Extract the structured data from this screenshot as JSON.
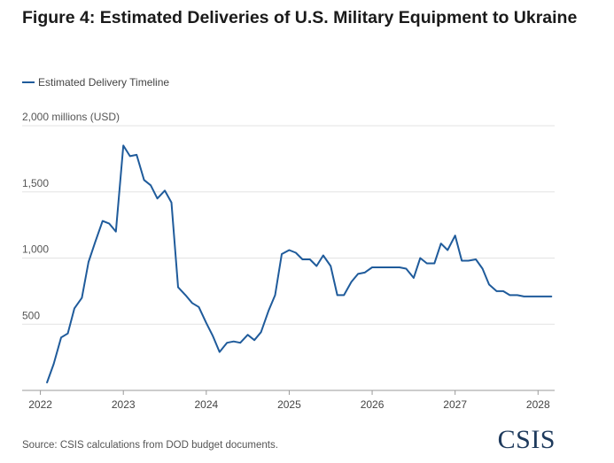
{
  "title": "Figure 4: Estimated Deliveries of U.S. Military Equipment to Ukraine",
  "source": "Source: CSIS calculations from DOD budget documents.",
  "logo_text": "CSIS",
  "colors": {
    "series": "#1f5b9b",
    "grid": "#e3e3e3",
    "axis": "#999999"
  },
  "chart_data": {
    "type": "line",
    "title": "Figure 4: Estimated Deliveries of U.S. Military Equipment to Ukraine",
    "ylabel": "millions (USD)",
    "y_top_label": "2,000 millions (USD)",
    "ylim": [
      0,
      2000
    ],
    "xlim": [
      2021.78,
      2028.2
    ],
    "grid": true,
    "legend_position": "top-left",
    "y_ticks": [
      {
        "value": 500,
        "label": "500"
      },
      {
        "value": 1000,
        "label": "1,000"
      },
      {
        "value": 1500,
        "label": "1,500"
      },
      {
        "value": 2000,
        "label": "2,000 millions (USD)"
      }
    ],
    "x_ticks": [
      {
        "value": 2022,
        "label": "2022"
      },
      {
        "value": 2023,
        "label": "2023"
      },
      {
        "value": 2024,
        "label": "2024"
      },
      {
        "value": 2025,
        "label": "2025"
      },
      {
        "value": 2026,
        "label": "2026"
      },
      {
        "value": 2027,
        "label": "2027"
      },
      {
        "value": 2028,
        "label": "2028"
      }
    ],
    "series": [
      {
        "name": "Estimated Delivery Timeline",
        "x": [
          2022.08,
          2022.16,
          2022.25,
          2022.33,
          2022.41,
          2022.5,
          2022.58,
          2022.66,
          2022.75,
          2022.83,
          2022.91,
          2023.0,
          2023.08,
          2023.16,
          2023.25,
          2023.33,
          2023.41,
          2023.5,
          2023.58,
          2023.66,
          2023.75,
          2023.83,
          2023.91,
          2024.0,
          2024.08,
          2024.16,
          2024.25,
          2024.33,
          2024.41,
          2024.5,
          2024.58,
          2024.66,
          2024.75,
          2024.83,
          2024.91,
          2025.0,
          2025.08,
          2025.16,
          2025.25,
          2025.33,
          2025.41,
          2025.5,
          2025.58,
          2025.66,
          2025.75,
          2025.83,
          2025.91,
          2026.0,
          2026.08,
          2026.16,
          2026.25,
          2026.33,
          2026.41,
          2026.5,
          2026.58,
          2026.66,
          2026.75,
          2026.83,
          2026.91,
          2027.0,
          2027.08,
          2027.16,
          2027.25,
          2027.33,
          2027.41,
          2027.5,
          2027.58,
          2027.66,
          2027.75,
          2027.83,
          2027.91,
          2028.0,
          2028.08,
          2028.16
        ],
        "y": [
          60,
          200,
          400,
          430,
          620,
          700,
          970,
          1120,
          1280,
          1260,
          1200,
          1850,
          1770,
          1780,
          1590,
          1550,
          1450,
          1510,
          1420,
          780,
          720,
          660,
          630,
          510,
          410,
          290,
          360,
          370,
          360,
          420,
          380,
          440,
          600,
          720,
          1030,
          1060,
          1040,
          990,
          990,
          940,
          1020,
          940,
          720,
          720,
          820,
          880,
          890,
          930,
          930,
          930,
          930,
          930,
          920,
          850,
          1000,
          960,
          960,
          1110,
          1060,
          1170,
          980,
          980,
          990,
          920,
          800,
          750,
          750,
          720,
          720,
          710,
          710,
          710,
          710,
          710
        ]
      }
    ]
  }
}
